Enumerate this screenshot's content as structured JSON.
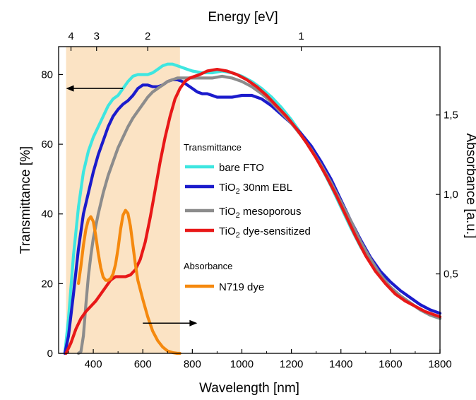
{
  "chart_data": {
    "type": "line",
    "xlabel": "Wavelength [nm]",
    "ylabel": "Transmittance [%]",
    "y2label": "Absorbance [a.u.]",
    "x2label": "Energy [eV]",
    "xlim": [
      260,
      1800
    ],
    "ylim": [
      0,
      88
    ],
    "y2lim": [
      0,
      1.93
    ],
    "x_ticks": [
      400,
      600,
      800,
      1000,
      1200,
      1400,
      1600,
      1800
    ],
    "y_ticks": [
      0,
      20,
      40,
      60,
      80
    ],
    "y2_ticks": [
      {
        "value": 0.5,
        "label": "0,5"
      },
      {
        "value": 1.0,
        "label": "1,0"
      },
      {
        "value": 1.5,
        "label": "1,5"
      }
    ],
    "x2_ticks": [
      {
        "value": 4,
        "label": "4"
      },
      {
        "value": 3,
        "label": "3"
      },
      {
        "value": 2,
        "label": "2"
      },
      {
        "value": 1,
        "label": "1"
      }
    ],
    "shaded_region": {
      "x_start": 290,
      "x_end": 750,
      "color": "#fbe3c4"
    },
    "legend_groups": [
      {
        "header": "Transmittance",
        "items": [
          "bare FTO",
          "TiO2 30nm EBL",
          "TiO2 mesoporous",
          "TiO2 dye-sensitized"
        ]
      },
      {
        "header": "Absorbance",
        "items": [
          "N719 dye"
        ]
      }
    ],
    "series": [
      {
        "name": "bare FTO",
        "label_main": "bare FTO",
        "label_sub": "",
        "label_rest": "",
        "axis": "left",
        "color": "#3ee6e0",
        "x": [
          285,
          300,
          320,
          340,
          360,
          380,
          400,
          420,
          440,
          460,
          480,
          500,
          520,
          540,
          560,
          580,
          600,
          620,
          640,
          660,
          680,
          700,
          720,
          740,
          760,
          780,
          800,
          840,
          880,
          920,
          960,
          1000,
          1040,
          1080,
          1120,
          1160,
          1200,
          1240,
          1280,
          1320,
          1360,
          1400,
          1440,
          1480,
          1520,
          1560,
          1600,
          1640,
          1680,
          1720,
          1760,
          1800
        ],
        "y": [
          0,
          10,
          28,
          42,
          52,
          58,
          62,
          65,
          68,
          71,
          73,
          74,
          76,
          78,
          79.5,
          80,
          80,
          80,
          80.5,
          81.5,
          82.5,
          83,
          83,
          82.5,
          82,
          81.5,
          81,
          80.5,
          80.5,
          81,
          80.5,
          79.5,
          78,
          76,
          73.5,
          70.5,
          67,
          63,
          58.5,
          53.5,
          48,
          42,
          36,
          30.5,
          26,
          22,
          19,
          16.5,
          14.5,
          12.5,
          11,
          10
        ]
      },
      {
        "name": "TiO2 30nm EBL",
        "label_main": "TiO",
        "label_sub": "2",
        "label_rest": " 30nm EBL",
        "axis": "left",
        "color": "#1b1bcc",
        "x": [
          285,
          300,
          320,
          340,
          360,
          380,
          400,
          420,
          440,
          460,
          480,
          500,
          520,
          540,
          560,
          580,
          600,
          620,
          640,
          660,
          680,
          700,
          720,
          740,
          760,
          780,
          800,
          820,
          840,
          860,
          880,
          900,
          920,
          960,
          1000,
          1040,
          1080,
          1120,
          1160,
          1200,
          1240,
          1280,
          1320,
          1360,
          1400,
          1440,
          1480,
          1520,
          1560,
          1600,
          1640,
          1680,
          1720,
          1760,
          1800
        ],
        "y": [
          0,
          5,
          17,
          30,
          40,
          46,
          52,
          57,
          61,
          65,
          68,
          70,
          71.5,
          72.5,
          74,
          76,
          77,
          77,
          76.5,
          76.5,
          77,
          78,
          78.5,
          78.5,
          78,
          77,
          76,
          75,
          74.5,
          74.5,
          74,
          73.5,
          73.5,
          73.5,
          74,
          74,
          73,
          71,
          68.5,
          66,
          63,
          59.5,
          55,
          50,
          44,
          38,
          32.5,
          27.5,
          23.5,
          20.5,
          18,
          16,
          14,
          12.5,
          11.5
        ]
      },
      {
        "name": "TiO2 mesoporous",
        "label_main": "TiO",
        "label_sub": "2",
        "label_rest": " mesoporous",
        "axis": "left",
        "color": "#8c8c8c",
        "x": [
          340,
          350,
          360,
          370,
          380,
          390,
          400,
          420,
          440,
          460,
          480,
          500,
          520,
          540,
          560,
          580,
          600,
          620,
          640,
          660,
          680,
          700,
          720,
          740,
          760,
          780,
          800,
          840,
          880,
          920,
          960,
          1000,
          1040,
          1080,
          1120,
          1160,
          1200,
          1240,
          1280,
          1320,
          1360,
          1400,
          1440,
          1480,
          1520,
          1560,
          1600,
          1640,
          1680,
          1720,
          1760,
          1800
        ],
        "y": [
          0,
          0.5,
          5,
          14,
          22,
          28,
          33,
          40,
          46,
          51,
          55,
          59,
          62,
          65,
          67.5,
          69.5,
          71.5,
          73.5,
          75,
          76,
          77,
          78,
          78.5,
          79,
          79,
          79,
          79,
          79,
          79,
          79.5,
          79,
          78,
          76.5,
          74.5,
          72,
          69,
          66,
          62.5,
          58.5,
          54,
          49,
          43.5,
          38,
          32,
          27,
          22.5,
          19,
          16.5,
          14.5,
          12.5,
          11,
          10
        ]
      },
      {
        "name": "TiO2 dye-sensitized",
        "label_main": "TiO",
        "label_sub": "2",
        "label_rest": " dye-sensitized",
        "axis": "left",
        "color": "#e81818",
        "x": [
          290,
          310,
          330,
          350,
          370,
          390,
          410,
          430,
          450,
          470,
          490,
          510,
          530,
          550,
          570,
          590,
          610,
          630,
          650,
          670,
          690,
          710,
          730,
          750,
          770,
          790,
          810,
          830,
          860,
          900,
          940,
          980,
          1020,
          1060,
          1100,
          1140,
          1180,
          1220,
          1260,
          1300,
          1340,
          1380,
          1420,
          1460,
          1500,
          1540,
          1580,
          1620,
          1660,
          1700,
          1740,
          1800
        ],
        "y": [
          0,
          3,
          7,
          10,
          12,
          13.5,
          15,
          17,
          19,
          21,
          22,
          22,
          22,
          22.5,
          24,
          27,
          32,
          39,
          47,
          55,
          62,
          68,
          73,
          76,
          78,
          79,
          79.5,
          80,
          81,
          81.5,
          81,
          80,
          78.5,
          76.5,
          74,
          71,
          68,
          64.5,
          60.5,
          56,
          51,
          45.5,
          39.5,
          33.5,
          28,
          23.5,
          20,
          17,
          15,
          13.5,
          12,
          10.5
        ]
      },
      {
        "name": "N719 dye",
        "label_main": "N719 dye",
        "label_sub": "",
        "label_rest": "",
        "axis": "right",
        "color": "#f5890e",
        "x": [
          340,
          350,
          360,
          370,
          380,
          390,
          400,
          410,
          420,
          430,
          440,
          450,
          460,
          470,
          480,
          490,
          500,
          510,
          520,
          530,
          540,
          550,
          560,
          570,
          580,
          600,
          620,
          640,
          660,
          680,
          700,
          720,
          740,
          750
        ],
        "y": [
          0.44,
          0.55,
          0.68,
          0.78,
          0.84,
          0.86,
          0.83,
          0.74,
          0.63,
          0.54,
          0.48,
          0.46,
          0.46,
          0.47,
          0.5,
          0.56,
          0.66,
          0.78,
          0.87,
          0.9,
          0.88,
          0.8,
          0.68,
          0.56,
          0.46,
          0.34,
          0.23,
          0.14,
          0.08,
          0.04,
          0.015,
          0.005,
          0.0,
          0.0
        ]
      }
    ],
    "arrows": [
      {
        "direction": "left",
        "y": 76,
        "x_from": 520,
        "x_to": 290,
        "axis": "left"
      },
      {
        "direction": "right",
        "y": 0.19,
        "x_from": 600,
        "x_to": 820,
        "axis": "right"
      }
    ]
  }
}
